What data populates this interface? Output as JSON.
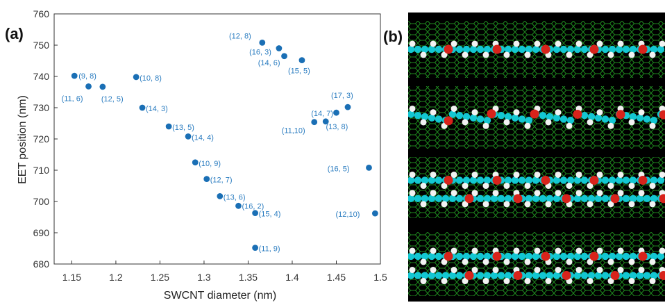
{
  "panel_labels": {
    "a": "(a)",
    "b": "(b)"
  },
  "chart_data": {
    "type": "scatter",
    "xlabel": "SWCNT diameter (nm)",
    "ylabel": "EET position (nm)",
    "xlim": [
      1.13,
      1.5
    ],
    "ylim": [
      680,
      760
    ],
    "xticks": [
      "1.15",
      "1.2",
      "1.25",
      "1.3",
      "1.35",
      "1.4",
      "1.45",
      "1.5"
    ],
    "yticks": [
      "680",
      "690",
      "700",
      "710",
      "720",
      "730",
      "740",
      "750",
      "760"
    ],
    "grid": false,
    "marker_color": "#1a6fb5",
    "label_color": "#2a7cc0",
    "points": [
      {
        "label": "(9, 8)",
        "x": 1.153,
        "y": 740.2
      },
      {
        "label": "(11, 6)",
        "x": 1.169,
        "y": 736.8
      },
      {
        "label": "(12, 5)",
        "x": 1.185,
        "y": 736.7
      },
      {
        "label": "(10, 8)",
        "x": 1.223,
        "y": 739.8
      },
      {
        "label": "(14, 3)",
        "x": 1.23,
        "y": 730.0
      },
      {
        "label": "(13, 5)",
        "x": 1.26,
        "y": 724.0
      },
      {
        "label": "(14, 4)",
        "x": 1.282,
        "y": 720.8
      },
      {
        "label": "(10, 9)",
        "x": 1.29,
        "y": 712.5
      },
      {
        "label": "(12, 7)",
        "x": 1.303,
        "y": 707.2
      },
      {
        "label": "(13, 6)",
        "x": 1.318,
        "y": 701.7
      },
      {
        "label": "(16, 2)",
        "x": 1.339,
        "y": 698.6
      },
      {
        "label": "(15, 4)",
        "x": 1.358,
        "y": 696.3
      },
      {
        "label": "(11, 9)",
        "x": 1.358,
        "y": 685.2
      },
      {
        "label": "(12, 8)",
        "x": 1.366,
        "y": 750.8
      },
      {
        "label": "(16, 3)",
        "x": 1.385,
        "y": 749.0
      },
      {
        "label": "(14, 6)",
        "x": 1.391,
        "y": 746.5
      },
      {
        "label": "(15, 5)",
        "x": 1.411,
        "y": 745.2
      },
      {
        "label": "(11,10)",
        "x": 1.425,
        "y": 725.4
      },
      {
        "label": "(14, 7)",
        "x": 1.438,
        "y": 725.6
      },
      {
        "label": "(13, 8)",
        "x": 1.45,
        "y": 728.4
      },
      {
        "label": "(17, 3)",
        "x": 1.463,
        "y": 730.2
      },
      {
        "label": "(16, 5)",
        "x": 1.487,
        "y": 710.8
      },
      {
        "label": "(12,10)",
        "x": 1.494,
        "y": 696.2
      }
    ]
  },
  "molecule_panel": {
    "tube_color": "#1f8a1f",
    "carbon_color": "#13c7d2",
    "hydrogen_color": "#f2f2f2",
    "oxygen_color": "#d8231b",
    "background_color": "#000000"
  }
}
